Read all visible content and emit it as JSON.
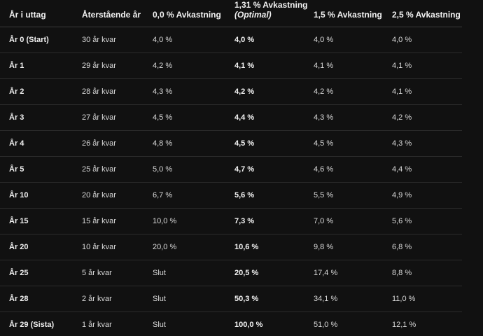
{
  "table": {
    "headers": {
      "year": "År i uttag",
      "remaining": "Återstående år",
      "r0": "0,0 % Avkastning",
      "r131_line1": "1,31 % Avkastning",
      "r131_line2": "(Optimal)",
      "r15": "1,5 % Avkastning",
      "r25": "2,5 % Avkastning"
    },
    "rows": [
      {
        "year": "År 0 (Start)",
        "remaining": "30 år kvar",
        "r0": "4,0 %",
        "r131": "4,0 %",
        "r15": "4,0 %",
        "r25": "4,0 %"
      },
      {
        "year": "År 1",
        "remaining": "29 år kvar",
        "r0": "4,2 %",
        "r131": "4,1 %",
        "r15": "4,1 %",
        "r25": "4,1 %"
      },
      {
        "year": "År 2",
        "remaining": "28 år kvar",
        "r0": "4,3 %",
        "r131": "4,2 %",
        "r15": "4,2 %",
        "r25": "4,1 %"
      },
      {
        "year": "År 3",
        "remaining": "27 år kvar",
        "r0": "4,5 %",
        "r131": "4,4 %",
        "r15": "4,3 %",
        "r25": "4,2 %"
      },
      {
        "year": "År 4",
        "remaining": "26 år kvar",
        "r0": "4,8 %",
        "r131": "4,5 %",
        "r15": "4,5 %",
        "r25": "4,3 %"
      },
      {
        "year": "År 5",
        "remaining": "25 år kvar",
        "r0": "5,0 %",
        "r131": "4,7 %",
        "r15": "4,6 %",
        "r25": "4,4 %"
      },
      {
        "year": "År 10",
        "remaining": "20 år kvar",
        "r0": "6,7 %",
        "r131": "5,6 %",
        "r15": "5,5 %",
        "r25": "4,9 %"
      },
      {
        "year": "År 15",
        "remaining": "15 år kvar",
        "r0": "10,0 %",
        "r131": "7,3 %",
        "r15": "7,0 %",
        "r25": "5,6 %"
      },
      {
        "year": "År 20",
        "remaining": "10 år kvar",
        "r0": "20,0 %",
        "r131": "10,6 %",
        "r15": "9,8 %",
        "r25": "6,8 %"
      },
      {
        "year": "År 25",
        "remaining": "5 år kvar",
        "r0": "Slut",
        "r131": "20,5 %",
        "r15": "17,4 %",
        "r25": "8,8 %"
      },
      {
        "year": "År 28",
        "remaining": "2 år kvar",
        "r0": "Slut",
        "r131": "50,3 %",
        "r15": "34,1 %",
        "r25": "11,0 %"
      },
      {
        "year": "År 29 (Sista)",
        "remaining": "1 år kvar",
        "r0": "Slut",
        "r131": "100,0 %",
        "r15": "51,0 %",
        "r25": "12,1 %"
      }
    ]
  }
}
